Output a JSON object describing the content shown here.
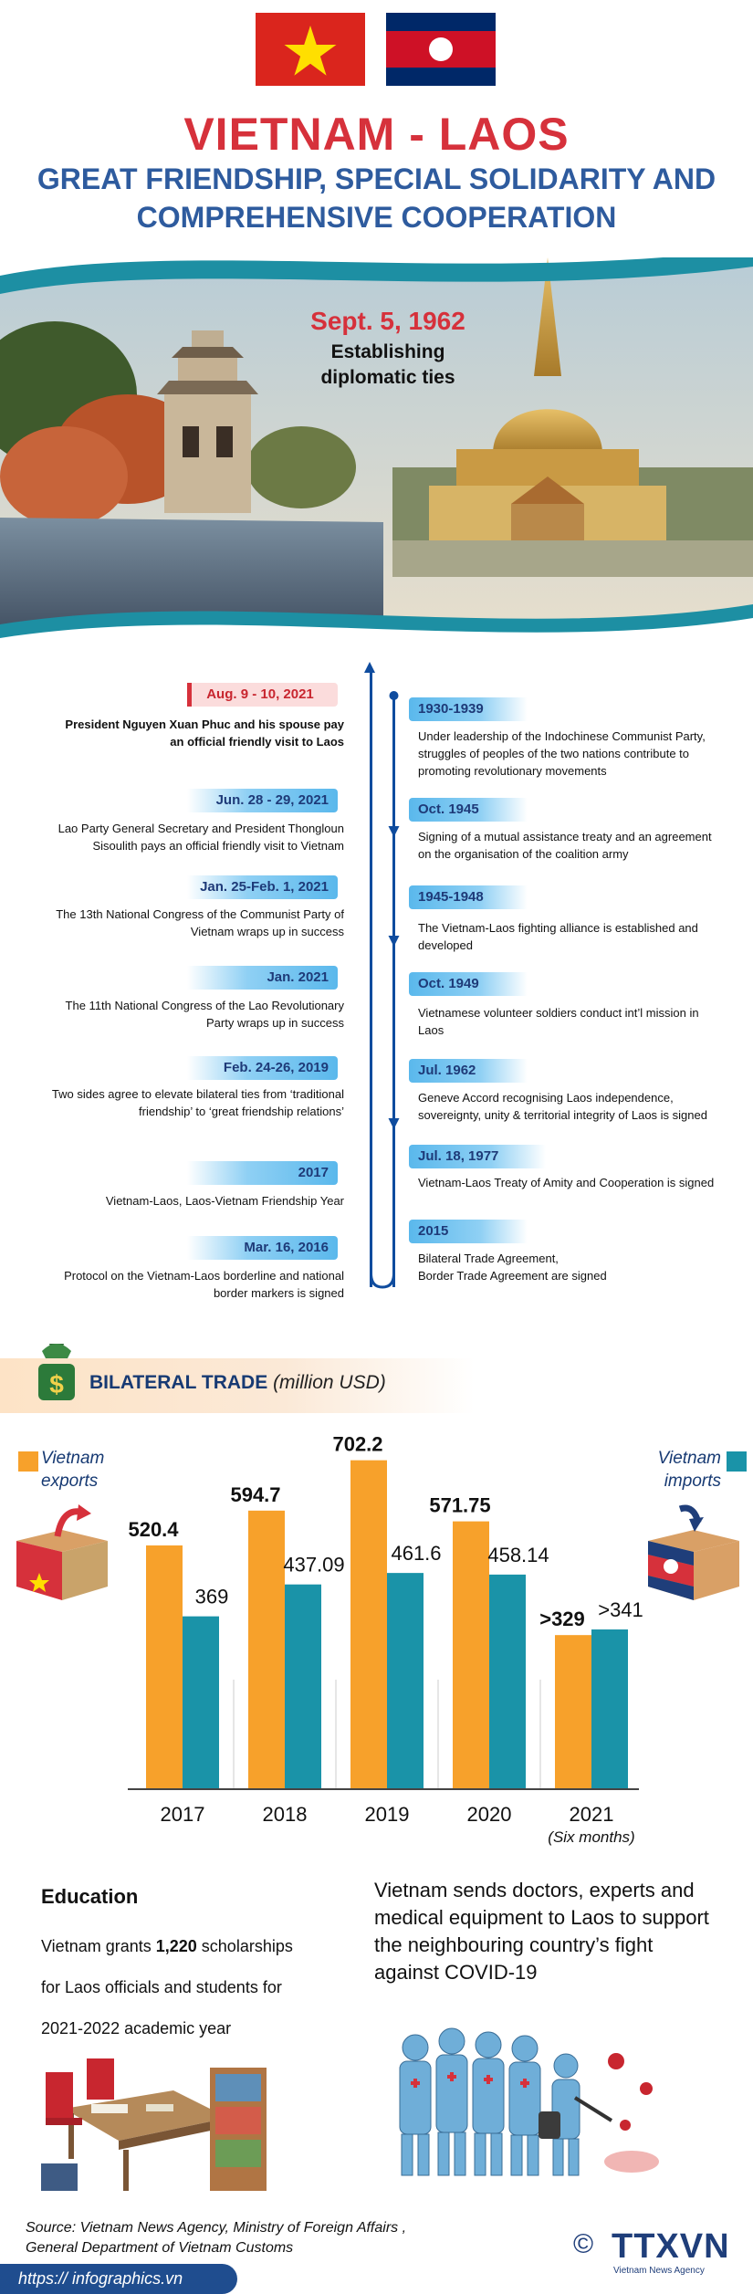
{
  "header": {
    "title": "VIETNAM - LAOS",
    "subtitle_line1": "GREAT FRIENDSHIP, SPECIAL SOLIDARITY AND",
    "subtitle_line2": "COMPREHENSIVE COOPERATION"
  },
  "hero": {
    "date": "Sept. 5, 1962",
    "caption_line1": "Establishing",
    "caption_line2": "diplomatic ties"
  },
  "timeline_left": [
    {
      "date": "Aug. 9 - 10, 2021",
      "text_line1": "President Nguyen Xuan Phuc and his spouse pay",
      "text_line2": "an official friendly visit to Laos"
    },
    {
      "date": "Jun. 28  - 29, 2021",
      "text_line1": "Lao Party General Secretary and President  Thongloun",
      "text_line2": "Sisoulith pays an official friendly visit to Vietnam"
    },
    {
      "date": "Jan. 25-Feb. 1, 2021",
      "text_line1": "The 13th National Congress of the Communist Party of",
      "text_line2": "Vietnam wraps up in success"
    },
    {
      "date": "Jan. 2021",
      "text_line1": "The 11th National Congress of the Lao Revolutionary",
      "text_line2": "Party wraps up in success"
    },
    {
      "date": "Feb. 24-26, 2019",
      "text_line1": "Two sides agree to elevate bilateral ties from ‘traditional",
      "text_line2": "friendship’ to  ‘great friendship relations’"
    },
    {
      "date": "2017",
      "text_line1": "Vietnam-Laos, Laos-Vietnam Friendship Year",
      "text_line2": ""
    },
    {
      "date": "Mar. 16, 2016",
      "text_line1": "Protocol on the Vietnam-Laos borderline and national",
      "text_line2": "border markers is signed"
    }
  ],
  "timeline_right": [
    {
      "date": "1930-1939",
      "text_line1": "Under leadership of the Indochinese Communist Party,",
      "text_line2": "struggles of peoples of the two nations contribute to",
      "text_line3": "promoting revolutionary movements"
    },
    {
      "date": "Oct. 1945",
      "text_line1": "Signing of a mutual assistance treaty and an agreement",
      "text_line2": "on the organisation of the coalition army",
      "text_line3": ""
    },
    {
      "date": "1945-1948",
      "text_line1": "The Vietnam-Laos fighting alliance is established and",
      "text_line2": "developed",
      "text_line3": ""
    },
    {
      "date": "Oct. 1949",
      "text_line1": " Vietnamese volunteer soldiers conduct int’l mission in",
      "text_line2": "Laos",
      "text_line3": ""
    },
    {
      "date": "Jul. 1962",
      "text_line1": "Geneve Accord recognising Laos independence,",
      "text_line2": "sovereignty, unity & territorial integrity of Laos is signed",
      "text_line3": ""
    },
    {
      "date": "Jul. 18, 1977",
      "text_line1": "Vietnam-Laos Treaty of Amity and Cooperation is signed",
      "text_line2": "",
      "text_line3": ""
    },
    {
      "date": "2015",
      "text_line1": "Bilateral Trade Agreement,",
      "text_line2": "Border Trade Agreement are signed",
      "text_line3": ""
    }
  ],
  "trade": {
    "title": "BILATERAL TRADE",
    "unit": "(million USD)",
    "legend_exports_line1": "Vietnam",
    "legend_exports_line2": "exports",
    "legend_imports_line1": "Vietnam",
    "legend_imports_line2": "imports",
    "color_exports": "#f7a12b",
    "color_imports": "#1a93a8"
  },
  "chart_data": {
    "type": "bar",
    "categories": [
      "2017",
      "2018",
      "2019",
      "2020",
      "2021"
    ],
    "category_notes": [
      "",
      "",
      "",
      "",
      "(Six months)"
    ],
    "series": [
      {
        "name": "Vietnam exports",
        "values": [
          520.4,
          594.7,
          702.2,
          571.75,
          329
        ],
        "labels": [
          "520.4",
          "594.7",
          "702.2",
          "571.75",
          ">329"
        ]
      },
      {
        "name": "Vietnam imports",
        "values": [
          369,
          437.09,
          461.6,
          458.14,
          341
        ],
        "labels": [
          "369",
          "437.09",
          "461.6",
          "458.14",
          ">341"
        ]
      }
    ],
    "ylim": [
      0,
      760
    ],
    "grid": false,
    "legend": "top-left and top-right"
  },
  "education": {
    "title": "Education",
    "line1_pre": "Vietnam grants ",
    "line1_bold": "1,220",
    "line1_post": " scholarships",
    "line2": "for Laos officials and students for",
    "line3": "2021-2022 academic year"
  },
  "covid": {
    "line1": "Vietnam sends doctors, experts and",
    "line2": "medical equipment to Laos to support",
    "line3": "the neighbouring country’s fight",
    "line4": "against COVID-19"
  },
  "footer": {
    "source_line1": "Source: Vietnam News Agency, Ministry of Foreign Affairs ,",
    "source_line2": "General Department of Vietnam Customs",
    "url": "https:// infographics.vn",
    "logo": "TTXVN",
    "logo_sub": "Vietnam News Agency",
    "copyright": "©"
  }
}
